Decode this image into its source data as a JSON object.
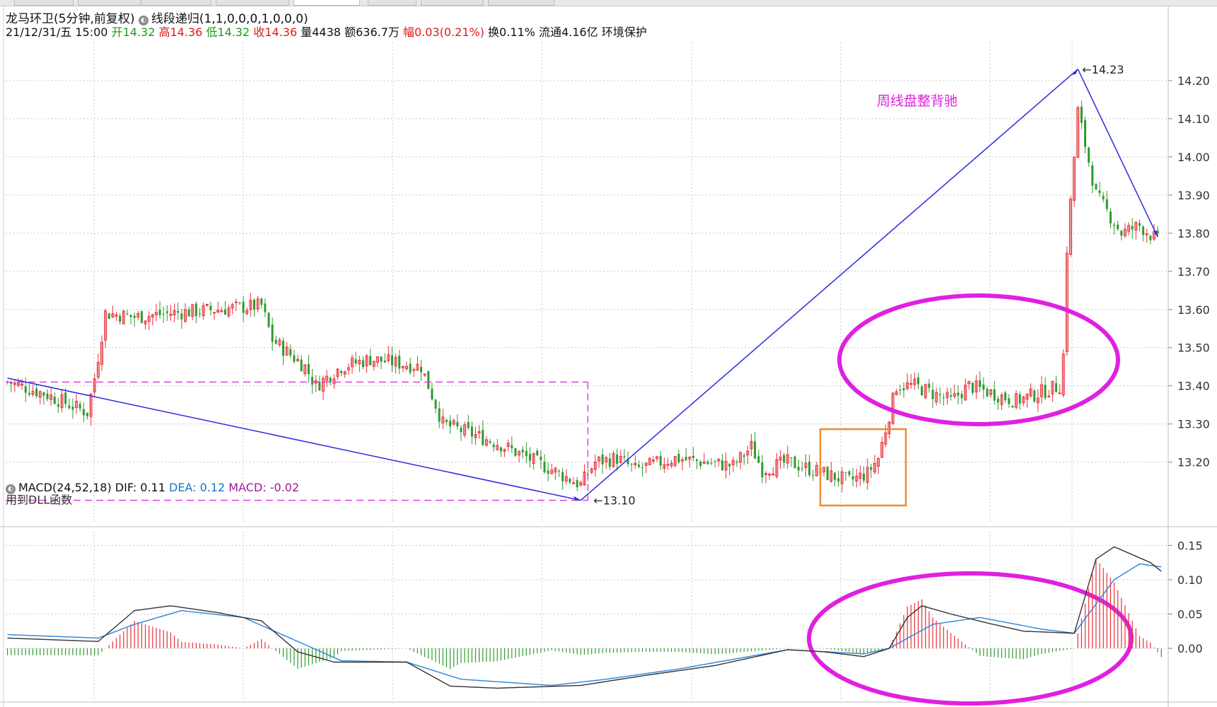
{
  "tabs": [
    "",
    "",
    "",
    "",
    "",
    "",
    "",
    ""
  ],
  "header": {
    "name": "龙马环卫",
    "period": "(5分钟,前复权)",
    "indicator": "线段递归(1,1,0,0,0,1,0,0,0)",
    "date": "21/12/31/五 15:00",
    "open_label": "开",
    "open": "14.32",
    "high_label": "高",
    "high": "14.36",
    "low_label": "低",
    "low": "14.32",
    "close_label": "收",
    "close": "14.36",
    "vol_label": "量",
    "vol": "4438",
    "amt_label": "额",
    "amt": "636.7万",
    "chg_label": "幅",
    "chg": "0.03(0.21%)",
    "turn_label": "换",
    "turn": "0.11%",
    "float_label": "流通",
    "float": "4.16亿",
    "sector": "环境保护"
  },
  "macd_header": {
    "name": "MACD(24,52,18)",
    "dif": "DIF: 0.11",
    "dea": "DEA: 0.12",
    "macd": "MACD: -0.02"
  },
  "annotations": {
    "low_label": "13.10",
    "high_label": "14.23",
    "dll_label": "用到DLL函数",
    "title_note": "周线盘整背驰"
  },
  "colors": {
    "up": "#e8303a",
    "down": "#2e9a2e",
    "trendline": "#2b2bdc",
    "dashed": "#e040e0",
    "ellipse": "#e020e0",
    "box": "#f08a30",
    "dif": "#333333",
    "dea": "#2a85d8",
    "grid": "#c8c8c8"
  },
  "chart_data": [
    {
      "type": "candlestick",
      "title": "龙马环卫 5分钟",
      "ylim": [
        13.04,
        14.3
      ],
      "y_ticks": [
        "14.20",
        "14.10",
        "14.00",
        "13.90",
        "13.80",
        "13.70",
        "13.60",
        "13.50",
        "13.40",
        "13.30",
        "13.20"
      ],
      "segment_points": [
        {
          "bar": 0,
          "price": 13.42
        },
        {
          "bar": 158,
          "price": 13.1
        },
        {
          "bar": 295,
          "price": 14.23
        },
        {
          "bar": 317,
          "price": 13.79
        }
      ],
      "reference_levels": [
        13.41,
        13.1
      ],
      "anchors": [
        [
          0,
          13.41
        ],
        [
          10,
          13.38
        ],
        [
          22,
          13.33
        ],
        [
          24,
          13.42
        ],
        [
          27,
          13.59
        ],
        [
          35,
          13.58
        ],
        [
          45,
          13.59
        ],
        [
          58,
          13.6
        ],
        [
          70,
          13.61
        ],
        [
          73,
          13.52
        ],
        [
          82,
          13.45
        ],
        [
          85,
          13.4
        ],
        [
          92,
          13.45
        ],
        [
          100,
          13.47
        ],
        [
          114,
          13.45
        ],
        [
          120,
          13.3
        ],
        [
          135,
          13.25
        ],
        [
          150,
          13.18
        ],
        [
          158,
          13.14
        ],
        [
          162,
          13.2
        ],
        [
          168,
          13.21
        ],
        [
          173,
          13.18
        ],
        [
          184,
          13.21
        ],
        [
          200,
          13.19
        ],
        [
          205,
          13.24
        ],
        [
          208,
          13.18
        ],
        [
          215,
          13.2
        ],
        [
          225,
          13.17
        ],
        [
          232,
          13.15
        ],
        [
          237,
          13.17
        ],
        [
          240,
          13.21
        ],
        [
          245,
          13.4
        ],
        [
          250,
          13.4
        ],
        [
          260,
          13.36
        ],
        [
          265,
          13.4
        ],
        [
          278,
          13.36
        ],
        [
          290,
          13.4
        ],
        [
          291,
          13.48
        ],
        [
          292,
          13.76
        ],
        [
          295,
          14.12
        ],
        [
          300,
          13.9
        ],
        [
          307,
          13.8
        ],
        [
          312,
          13.82
        ],
        [
          317,
          13.78
        ]
      ],
      "price_anchors_note": "approximate close path read from chart, x = bar index"
    },
    {
      "type": "line+bar",
      "title": "MACD(24,52,18)",
      "ylim": [
        -0.07,
        0.17
      ],
      "y_ticks": [
        "0.15",
        "0.10",
        "0.05",
        "0.00"
      ],
      "dif_anchors": [
        [
          0,
          0.015
        ],
        [
          25,
          0.01
        ],
        [
          35,
          0.055
        ],
        [
          45,
          0.062
        ],
        [
          58,
          0.052
        ],
        [
          70,
          0.04
        ],
        [
          80,
          -0.005
        ],
        [
          90,
          -0.02
        ],
        [
          98,
          -0.02
        ],
        [
          110,
          -0.02
        ],
        [
          122,
          -0.055
        ],
        [
          135,
          -0.058
        ],
        [
          158,
          -0.054
        ],
        [
          175,
          -0.04
        ],
        [
          195,
          -0.025
        ],
        [
          215,
          -0.002
        ],
        [
          225,
          -0.005
        ],
        [
          236,
          -0.012
        ],
        [
          243,
          0.0
        ],
        [
          248,
          0.045
        ],
        [
          252,
          0.062
        ],
        [
          260,
          0.05
        ],
        [
          270,
          0.037
        ],
        [
          280,
          0.025
        ],
        [
          294,
          0.022
        ],
        [
          300,
          0.13
        ],
        [
          305,
          0.148
        ],
        [
          315,
          0.125
        ],
        [
          319,
          0.108
        ]
      ],
      "dea_anchors": [
        [
          0,
          0.02
        ],
        [
          25,
          0.015
        ],
        [
          35,
          0.035
        ],
        [
          48,
          0.055
        ],
        [
          65,
          0.045
        ],
        [
          80,
          0.01
        ],
        [
          92,
          -0.018
        ],
        [
          110,
          -0.02
        ],
        [
          125,
          -0.045
        ],
        [
          150,
          -0.054
        ],
        [
          165,
          -0.045
        ],
        [
          185,
          -0.03
        ],
        [
          215,
          -0.002
        ],
        [
          236,
          -0.008
        ],
        [
          243,
          0.0
        ],
        [
          255,
          0.035
        ],
        [
          268,
          0.045
        ],
        [
          285,
          0.028
        ],
        [
          294,
          0.022
        ],
        [
          305,
          0.1
        ],
        [
          312,
          0.123
        ],
        [
          319,
          0.118
        ]
      ],
      "histogram": "MACD = DIF - DEA, red above zero, green below zero"
    }
  ]
}
